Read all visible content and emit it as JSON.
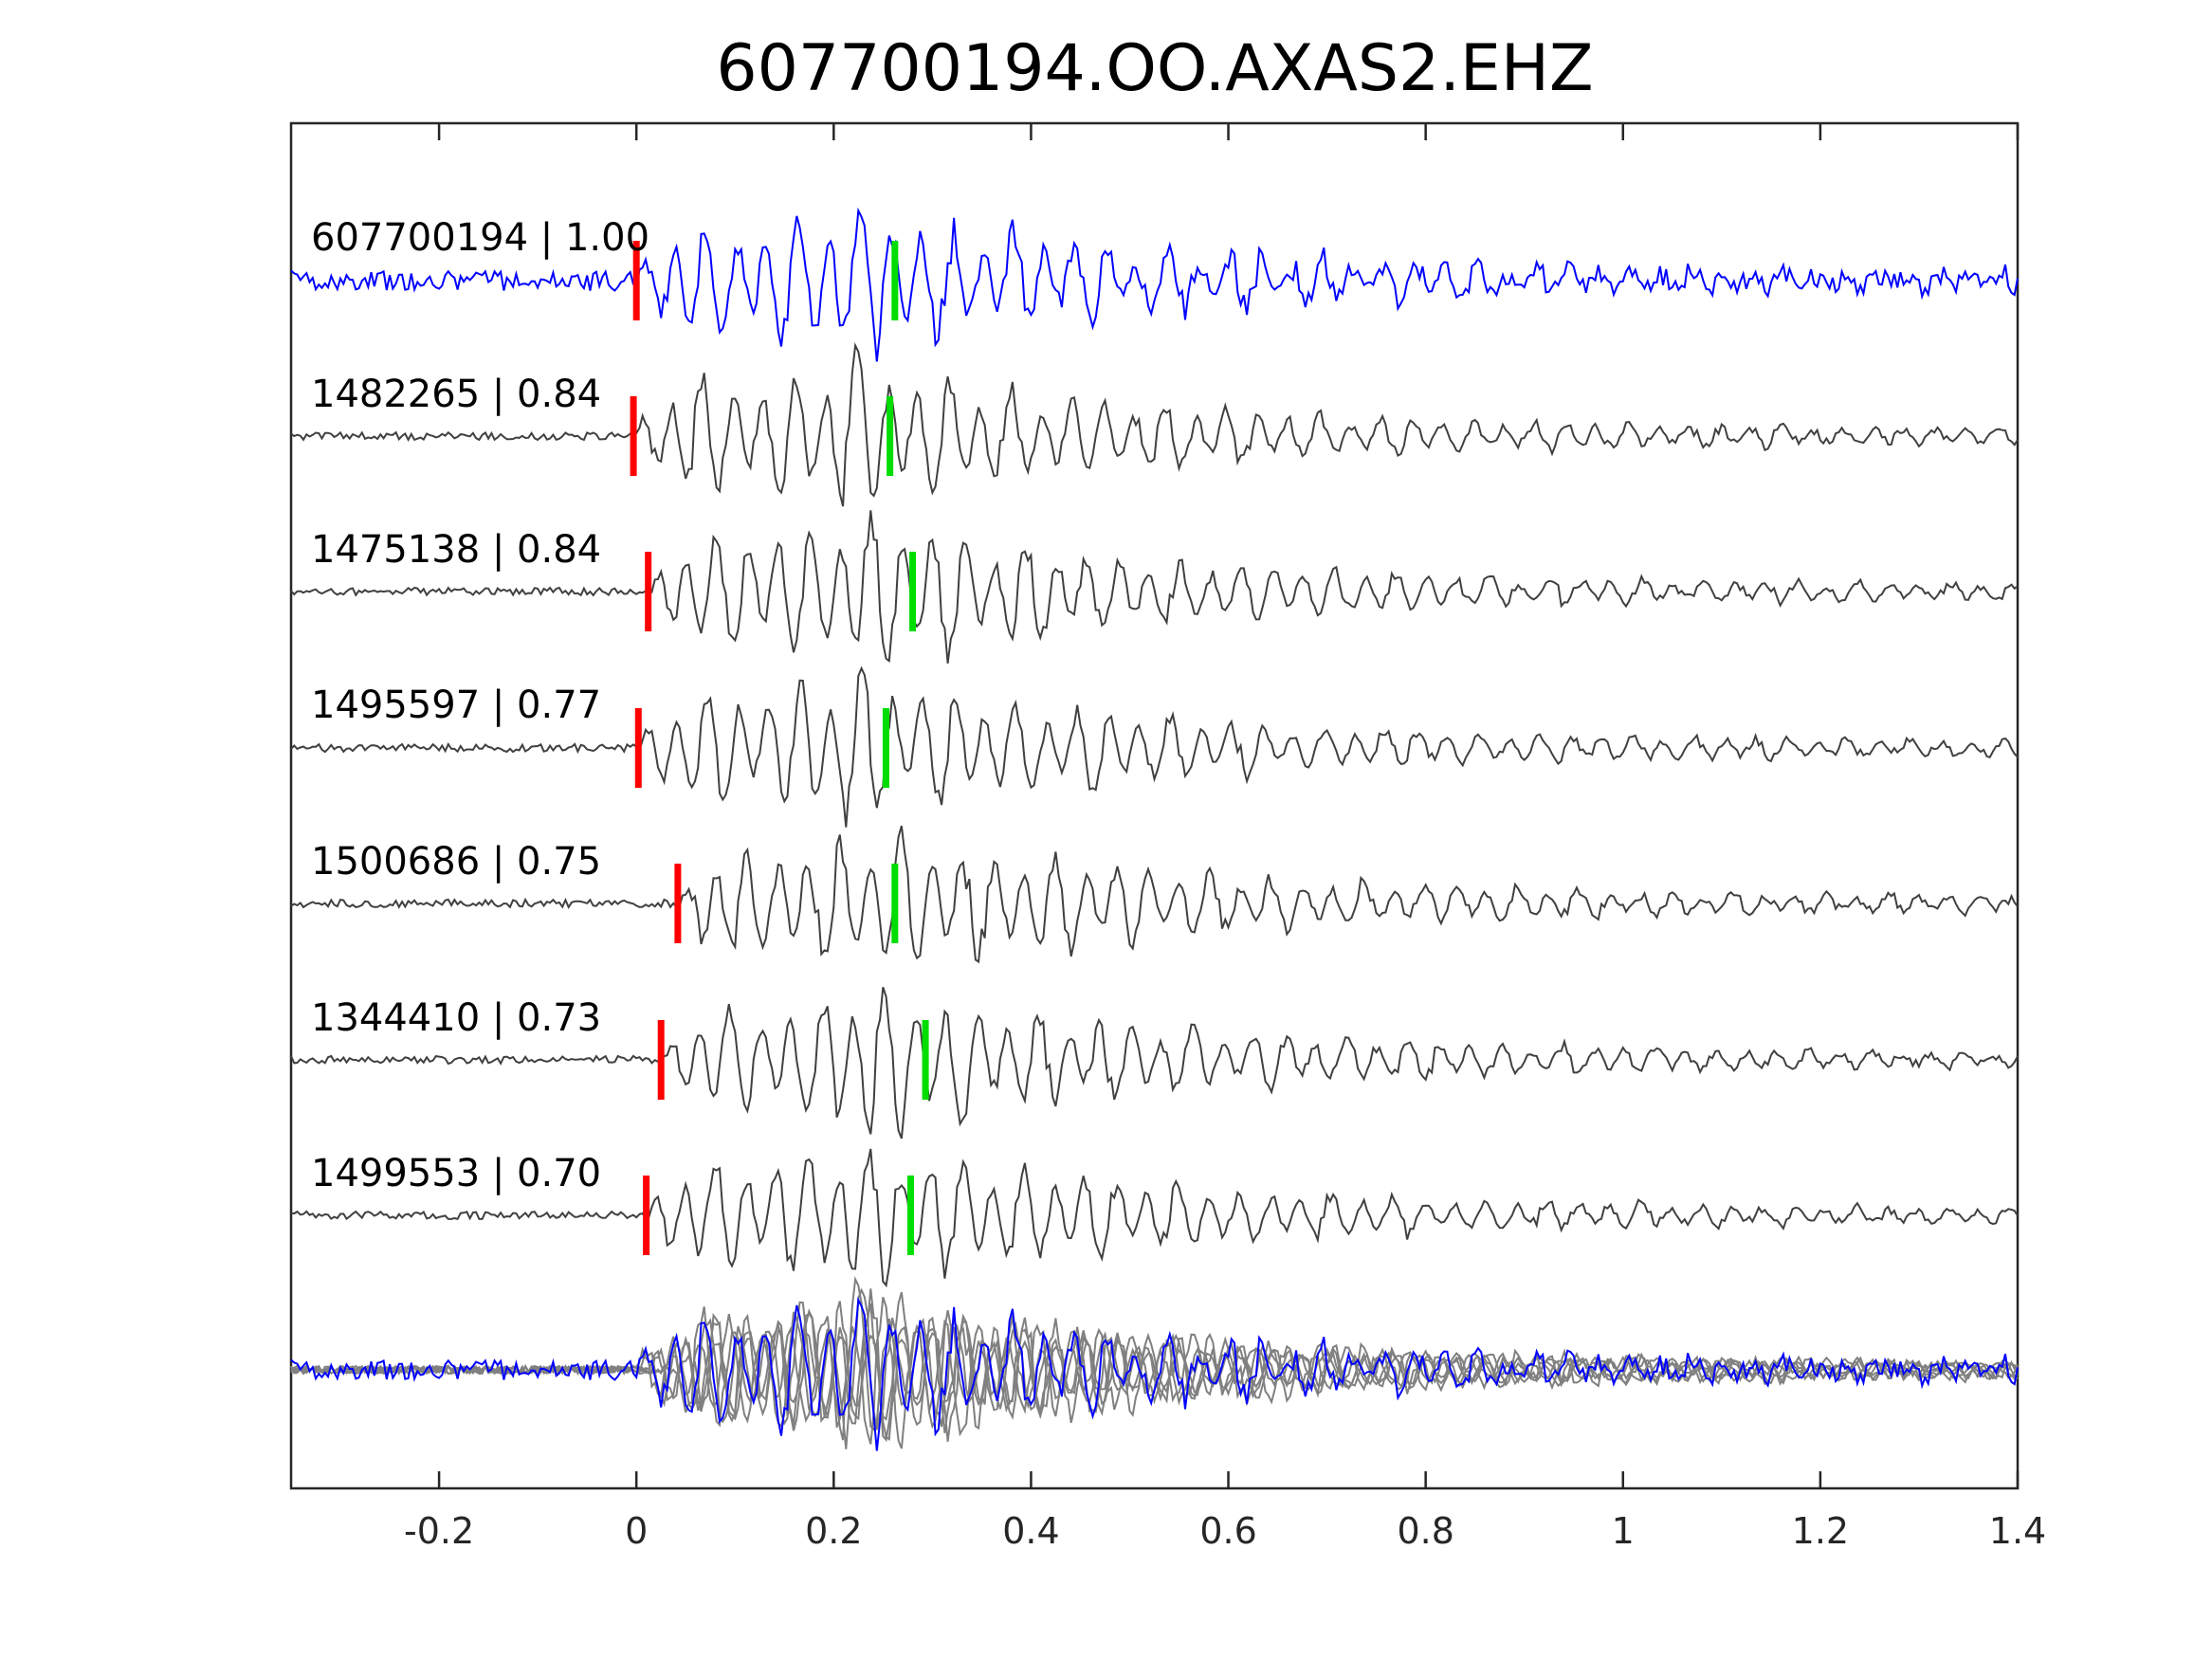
{
  "chart_data": {
    "type": "line",
    "title": "607700194.OO.AXAS2.EHZ",
    "xlabel": "",
    "ylabel": "",
    "xlim": [
      -0.35,
      1.4
    ],
    "xticks": [
      -0.2,
      0,
      0.2,
      0.4,
      0.6,
      0.8,
      1,
      1.2,
      1.4
    ],
    "xtick_labels": [
      "-0.2",
      "0",
      "0.2",
      "0.4",
      "0.6",
      "0.8",
      "1",
      "1.2",
      "1.4"
    ],
    "grid": false,
    "colors": {
      "target": "#0000ff",
      "template": "#404040",
      "stack": "#808080",
      "p_pick": "#ff0000",
      "s_pick": "#00dd00",
      "axes": "#262626"
    },
    "series": [
      {
        "label": "607700194 | 1.00",
        "id": "607700194",
        "cc": 1.0,
        "role": "target",
        "p_pick": 0.0,
        "s_pick": 0.262
      },
      {
        "label": "1482265 | 0.84",
        "id": "1482265",
        "cc": 0.84,
        "role": "template",
        "p_pick": -0.003,
        "s_pick": 0.257
      },
      {
        "label": "1475138 | 0.84",
        "id": "1475138",
        "cc": 0.84,
        "role": "template",
        "p_pick": 0.012,
        "s_pick": 0.28
      },
      {
        "label": "1495597 | 0.77",
        "id": "1495597",
        "cc": 0.77,
        "role": "template",
        "p_pick": 0.002,
        "s_pick": 0.253
      },
      {
        "label": "1500686 | 0.75",
        "id": "1500686",
        "cc": 0.75,
        "role": "template",
        "p_pick": 0.042,
        "s_pick": 0.262
      },
      {
        "label": "1344410 | 0.73",
        "id": "1344410",
        "cc": 0.73,
        "role": "template",
        "p_pick": 0.025,
        "s_pick": 0.293
      },
      {
        "label": "1499553 | 0.70",
        "id": "1499553",
        "cc": 0.7,
        "role": "template",
        "p_pick": 0.01,
        "s_pick": 0.278
      }
    ],
    "overlay": {
      "description_role": "stack"
    }
  }
}
